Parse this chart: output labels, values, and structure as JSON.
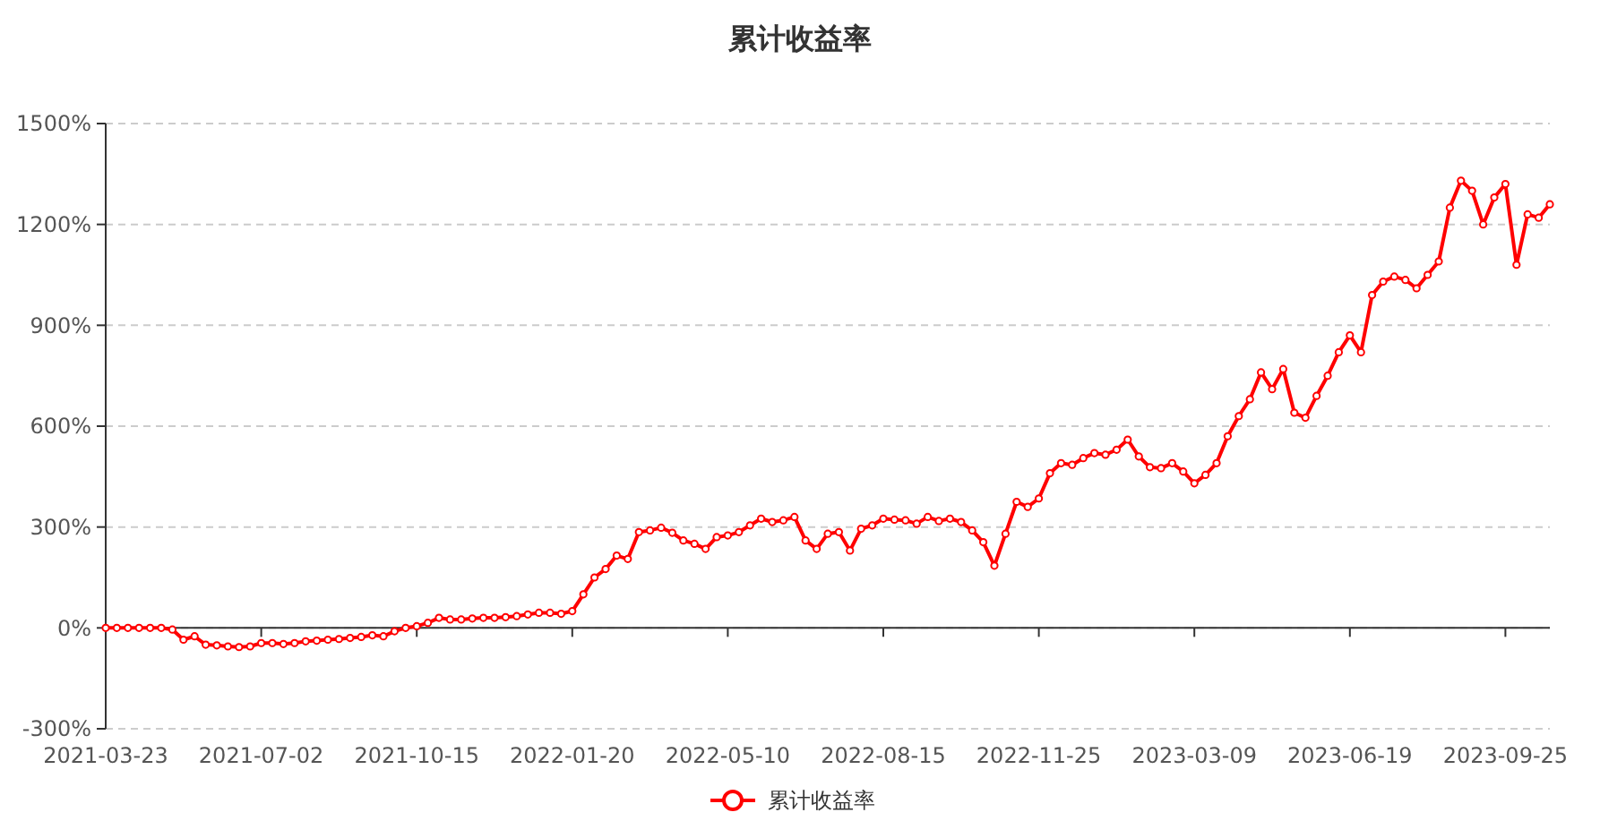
{
  "chart_data": {
    "type": "line",
    "title": "累计收益率",
    "categories": [
      "2021-03-23",
      null,
      null,
      null,
      null,
      null,
      null,
      null,
      null,
      null,
      null,
      null,
      null,
      null,
      "2021-07-02",
      null,
      null,
      null,
      null,
      null,
      null,
      null,
      null,
      null,
      null,
      null,
      null,
      null,
      "2021-10-15",
      null,
      null,
      null,
      null,
      null,
      null,
      null,
      null,
      null,
      null,
      null,
      null,
      null,
      "2022-01-20",
      null,
      null,
      null,
      null,
      null,
      null,
      null,
      null,
      null,
      null,
      null,
      null,
      null,
      "2022-05-10",
      null,
      null,
      null,
      null,
      null,
      null,
      null,
      null,
      null,
      null,
      null,
      null,
      null,
      "2022-08-15",
      null,
      null,
      null,
      null,
      null,
      null,
      null,
      null,
      null,
      null,
      null,
      null,
      null,
      "2022-11-25",
      null,
      null,
      null,
      null,
      null,
      null,
      null,
      null,
      null,
      null,
      null,
      null,
      null,
      "2023-03-09",
      null,
      null,
      null,
      null,
      null,
      null,
      null,
      null,
      null,
      null,
      null,
      null,
      null,
      "2023-06-19",
      null,
      null,
      null,
      null,
      null,
      null,
      null,
      null,
      null,
      null,
      null,
      null,
      null,
      "2023-09-25",
      null,
      null,
      null,
      null
    ],
    "series": [
      {
        "name": "累计收益率",
        "color": "#ff0000",
        "values": [
          0,
          0,
          0,
          0,
          0,
          0,
          -5,
          -35,
          -25,
          -50,
          -52,
          -55,
          -57,
          -55,
          -45,
          -45,
          -48,
          -45,
          -40,
          -38,
          -35,
          -33,
          -30,
          -27,
          -22,
          -25,
          -10,
          0,
          5,
          15,
          30,
          25,
          25,
          28,
          30,
          30,
          32,
          35,
          40,
          45,
          45,
          42,
          50,
          100,
          150,
          175,
          215,
          205,
          285,
          290,
          298,
          283,
          260,
          250,
          235,
          270,
          275,
          285,
          305,
          325,
          315,
          320,
          330,
          260,
          235,
          280,
          285,
          230,
          295,
          305,
          325,
          322,
          320,
          310,
          330,
          318,
          325,
          315,
          290,
          255,
          185,
          280,
          375,
          360,
          385,
          460,
          490,
          485,
          505,
          520,
          515,
          530,
          560,
          510,
          478,
          475,
          490,
          465,
          430,
          455,
          490,
          570,
          630,
          680,
          760,
          710,
          770,
          640,
          625,
          690,
          750,
          820,
          870,
          820,
          990,
          1030,
          1045,
          1035,
          1010,
          1050,
          1090,
          1250,
          1330,
          1300,
          1200,
          1280,
          1320,
          1080,
          1230,
          1220,
          1260
        ]
      }
    ],
    "ylim": [
      -300,
      1500
    ],
    "yticks": [
      {
        "value": -300,
        "label": "-300%"
      },
      {
        "value": 0,
        "label": "0%"
      },
      {
        "value": 300,
        "label": "300%"
      },
      {
        "value": 600,
        "label": "600%"
      },
      {
        "value": 900,
        "label": "900%"
      },
      {
        "value": 1200,
        "label": "1200%"
      },
      {
        "value": 1500,
        "label": "1500%"
      }
    ],
    "grid": "y",
    "legend": "bottom",
    "marker": "circle",
    "line_style": "solid"
  }
}
